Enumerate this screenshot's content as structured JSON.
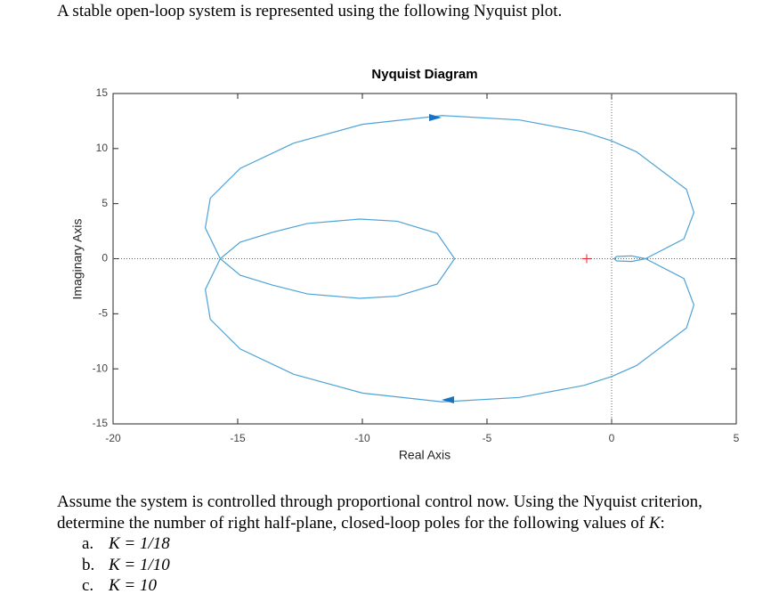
{
  "header": "A stable open-loop system is represented using the following Nyquist plot.",
  "chart_data": {
    "type": "line",
    "title": "Nyquist Diagram",
    "x_label": "Real Axis",
    "y_label": "Imaginary Axis",
    "x": [
      1.36,
      0.8,
      0.2,
      0.1,
      0.2,
      0.8,
      1.36,
      2.9,
      3.3,
      3.0,
      1.0,
      0,
      -1.1,
      -3.7,
      -6.8,
      -10,
      -12.75,
      -14.9,
      -16.1,
      -16.3,
      -15.7,
      -14.9,
      -13.6,
      -12.2,
      -10.1,
      -8.6,
      -7.0,
      -6.3,
      -7.0,
      -8.6,
      -10.1,
      -12.2,
      -13.6,
      -14.9,
      -15.7,
      -16.3,
      -16.1,
      -14.9,
      -12.75,
      -10,
      -6.8,
      -3.7,
      -1.1,
      0,
      1.0,
      3.0,
      3.3,
      2.9,
      1.36
    ],
    "series": [
      {
        "color": "#4ea2d6",
        "values": [
          0,
          0.25,
          0.2,
          0,
          -0.2,
          -0.25,
          0,
          -1.8,
          -4.2,
          -6.3,
          -9.7,
          -10.7,
          -11.5,
          -12.6,
          -13.0,
          -12.2,
          -10.5,
          -8.2,
          -5.5,
          -2.8,
          0,
          1.5,
          2.4,
          3.2,
          3.6,
          3.4,
          2.3,
          0,
          -2.3,
          -3.4,
          -3.6,
          -3.2,
          -2.4,
          -1.5,
          0,
          2.8,
          5.5,
          8.2,
          10.5,
          12.2,
          13.0,
          12.6,
          11.5,
          10.7,
          9.7,
          6.3,
          4.2,
          1.8,
          0
        ]
      }
    ],
    "critical_point": [
      -1,
      0
    ],
    "critical_color": "#e8212b",
    "xlim": [
      -20,
      5
    ],
    "ylim": [
      -15,
      15
    ],
    "xticks": [
      -20,
      -15,
      -10,
      -5,
      0,
      5
    ],
    "yticks": [
      -15,
      -10,
      -5,
      0,
      5,
      10,
      15
    ],
    "zero_lines": true
  },
  "question": {
    "text": "Assume the system is controlled through proportional control now. Using the Nyquist criterion,",
    "text2": "determine the number of right half-plane, closed-loop poles for the following values of ",
    "variable": "K",
    "end": ":"
  },
  "items": [
    {
      "label": "a.",
      "expr": "K = 1/18"
    },
    {
      "label": "b.",
      "expr": "K = 1/10"
    },
    {
      "label": "c.",
      "expr": "K = 10"
    }
  ]
}
